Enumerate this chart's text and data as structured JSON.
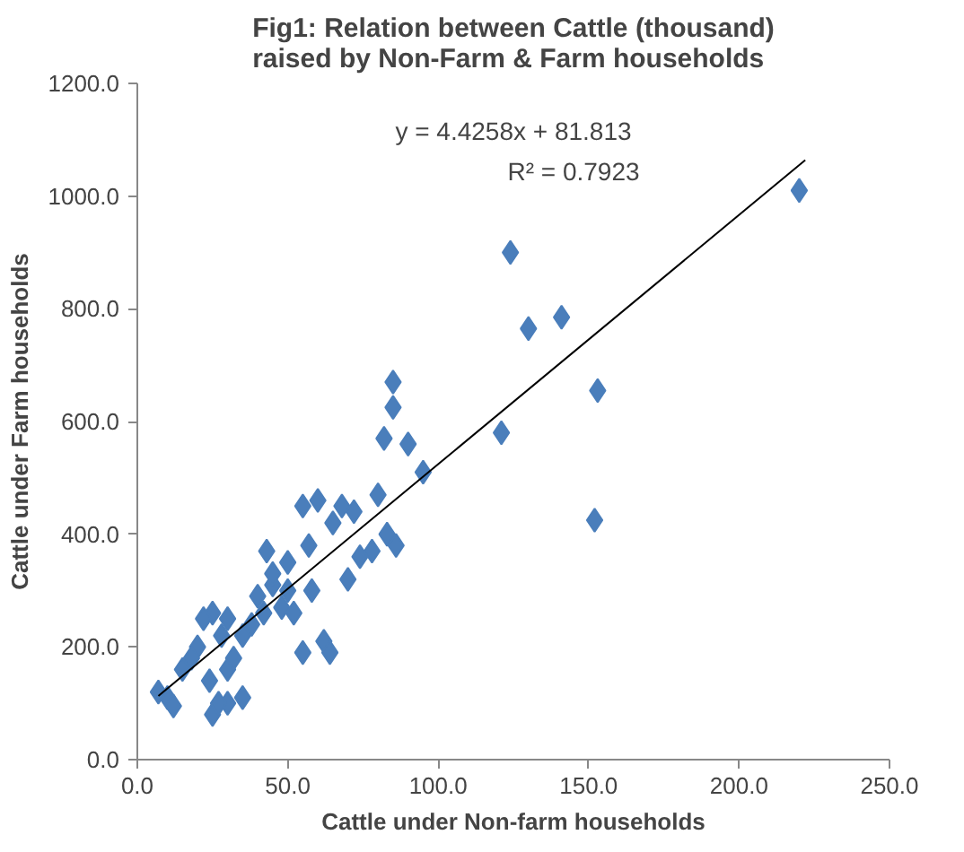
{
  "chart_data": {
    "type": "scatter",
    "title": "Fig1: Relation between Cattle (thousand)\nraised by Non-Farm & Farm households",
    "xlabel": "Cattle under Non-farm households",
    "ylabel": "Cattle under Farm households",
    "grid": false,
    "xlim": [
      0,
      250
    ],
    "ylim": [
      0,
      1200
    ],
    "xticks": [
      {
        "value": 0,
        "label": "0.0"
      },
      {
        "value": 50,
        "label": "50.0"
      },
      {
        "value": 100,
        "label": "100.0"
      },
      {
        "value": 150,
        "label": "150.0"
      },
      {
        "value": 200,
        "label": "200.0"
      },
      {
        "value": 250,
        "label": "250.0"
      }
    ],
    "yticks": [
      {
        "value": 0,
        "label": "0.0"
      },
      {
        "value": 200,
        "label": "200.0"
      },
      {
        "value": 400,
        "label": "400.0"
      },
      {
        "value": 600,
        "label": "600.0"
      },
      {
        "value": 800,
        "label": "800.0"
      },
      {
        "value": 1000,
        "label": "1000.0"
      },
      {
        "value": 1200,
        "label": "1200.0"
      }
    ],
    "annotations": [
      "y = 4.4258x + 81.813",
      "R² = 0.7923"
    ],
    "series": [
      {
        "marker": "diamond",
        "color": "#4a7ebb",
        "x": [
          220,
          124,
          130,
          141,
          153,
          152,
          121,
          95,
          85,
          85,
          82,
          90,
          80,
          83,
          78,
          86,
          72,
          68,
          70,
          74,
          65,
          60,
          55,
          57,
          62,
          64,
          55,
          50,
          45,
          43,
          40,
          48,
          52,
          58,
          38,
          35,
          30,
          28,
          25,
          22,
          20,
          18,
          15,
          24,
          30,
          32,
          10,
          7,
          12,
          25,
          30,
          35,
          27,
          45,
          50,
          42
        ],
        "values": [
          1010,
          900,
          765,
          785,
          655,
          425,
          580,
          510,
          670,
          625,
          570,
          560,
          470,
          400,
          370,
          380,
          440,
          450,
          320,
          360,
          420,
          460,
          450,
          380,
          210,
          190,
          190,
          350,
          310,
          370,
          290,
          270,
          260,
          300,
          240,
          220,
          250,
          220,
          260,
          250,
          200,
          180,
          160,
          140,
          160,
          180,
          110,
          120,
          95,
          80,
          100,
          110,
          100,
          330,
          300,
          260
        ]
      },
      {
        "type": "line",
        "marker": "none",
        "color": "#000000",
        "x": [
          7,
          222
        ],
        "values": [
          113,
          1064
        ]
      }
    ]
  }
}
